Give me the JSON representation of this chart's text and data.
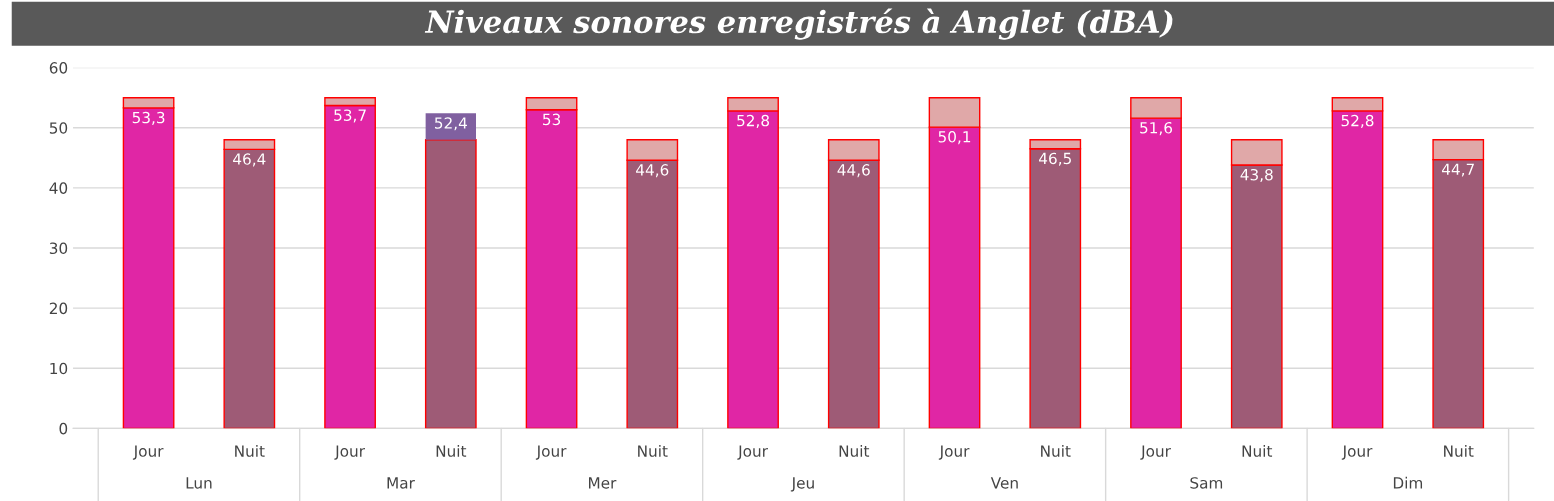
{
  "chart_data": {
    "type": "bar",
    "title": "Niveaux sonores enregistrés à Anglet (dBA)",
    "categories": [
      "Jour",
      "Nuit",
      "Jour",
      "Nuit",
      "Jour",
      "Nuit",
      "Jour",
      "Nuit",
      "Jour",
      "Nuit",
      "Jour",
      "Nuit",
      "Jour",
      "Nuit"
    ],
    "annotations": [
      "Lun",
      "Mar",
      "Mer",
      "Jeu",
      "Ven",
      "Sam",
      "Dim"
    ],
    "stacked": true,
    "series": [
      {
        "colors": [
          "#e026a5",
          "#9e5b76",
          "#e026a5",
          "#9e5b76",
          "#e026a5",
          "#9e5b76",
          "#e026a5",
          "#9e5b76",
          "#e026a5",
          "#9e5b76",
          "#e026a5",
          "#9e5b76",
          "#e026a5",
          "#9e5b76"
        ],
        "values": [
          53.3,
          46.4,
          53.7,
          48,
          53,
          44.6,
          52.8,
          44.6,
          50.1,
          46.5,
          51.6,
          43.8,
          52.8,
          44.7
        ],
        "value_labels": [
          "53,3",
          "46,4",
          "53,7",
          null,
          "53",
          "44,6",
          "52,8",
          "44,6",
          "50,1",
          "46,5",
          "51,6",
          "43,8",
          "52,8",
          "44,7"
        ]
      },
      {
        "color": "#e0a8a8",
        "values": [
          1.7,
          1.6,
          1.3,
          null,
          2,
          3.4,
          2.2,
          3.4,
          4.9,
          1.5,
          3.4,
          4.2,
          2.2,
          3.3
        ]
      },
      {
        "color": "#8060a0",
        "values": [
          null,
          null,
          null,
          4.4,
          null,
          null,
          null,
          null,
          null,
          null,
          null,
          null,
          null,
          null
        ]
      }
    ],
    "totals": [
      null,
      null,
      null,
      "52,4",
      null,
      null,
      null,
      null,
      null,
      null,
      null,
      null,
      null,
      null
    ],
    "ylim": [
      0,
      60
    ],
    "yticks": [
      0,
      10,
      20,
      30,
      40,
      50,
      60
    ],
    "grid": "y",
    "legend": false
  }
}
